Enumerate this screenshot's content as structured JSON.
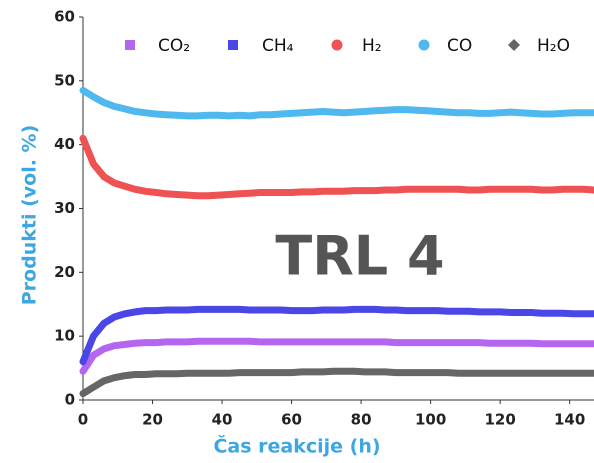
{
  "chart_data": {
    "type": "line",
    "xlabel": "Čas reakcije (h)",
    "ylabel": "Produkti (vol. %)",
    "annotation": "TRL 4",
    "xlim": [
      0,
      147
    ],
    "xticks": [
      0,
      20,
      40,
      60,
      80,
      100,
      120,
      140
    ],
    "ylim": [
      0,
      60
    ],
    "yticks": [
      0,
      10,
      20,
      30,
      40,
      50,
      60
    ],
    "x": [
      0,
      3,
      6,
      9,
      12,
      15,
      18,
      21,
      24,
      27,
      30,
      33,
      36,
      39,
      42,
      45,
      48,
      51,
      54,
      57,
      60,
      63,
      66,
      69,
      72,
      75,
      78,
      81,
      84,
      87,
      90,
      93,
      96,
      99,
      102,
      105,
      108,
      111,
      114,
      117,
      120,
      123,
      126,
      129,
      132,
      135,
      138,
      141,
      144,
      147
    ],
    "series": [
      {
        "name": "CO₂",
        "color": "#b566f0",
        "marker": "square",
        "values": [
          4.5,
          7,
          8,
          8.5,
          8.7,
          8.9,
          9,
          9,
          9.1,
          9.1,
          9.1,
          9.2,
          9.2,
          9.2,
          9.2,
          9.2,
          9.2,
          9.1,
          9.1,
          9.1,
          9.1,
          9.1,
          9.1,
          9.1,
          9.1,
          9.1,
          9.1,
          9.1,
          9.1,
          9.1,
          9,
          9,
          9,
          9,
          9,
          9,
          9,
          9,
          9,
          8.9,
          8.9,
          8.9,
          8.9,
          8.9,
          8.8,
          8.8,
          8.8,
          8.8,
          8.8,
          8.8
        ]
      },
      {
        "name": "CH₄",
        "color": "#4a47e6",
        "marker": "square",
        "values": [
          6,
          10,
          12,
          13,
          13.5,
          13.8,
          14,
          14,
          14.1,
          14.1,
          14.1,
          14.2,
          14.2,
          14.2,
          14.2,
          14.2,
          14.1,
          14.1,
          14.1,
          14.1,
          14,
          14,
          14,
          14.1,
          14.1,
          14.1,
          14.2,
          14.2,
          14.2,
          14.1,
          14.1,
          14,
          14,
          14,
          14,
          13.9,
          13.9,
          13.9,
          13.8,
          13.8,
          13.8,
          13.7,
          13.7,
          13.7,
          13.6,
          13.6,
          13.6,
          13.5,
          13.5,
          13.5
        ]
      },
      {
        "name": "H₂",
        "color": "#ee5253",
        "marker": "circle",
        "values": [
          41,
          37,
          35,
          34,
          33.5,
          33,
          32.7,
          32.5,
          32.3,
          32.2,
          32.1,
          32,
          32,
          32.1,
          32.2,
          32.3,
          32.4,
          32.5,
          32.5,
          32.5,
          32.5,
          32.6,
          32.6,
          32.7,
          32.7,
          32.7,
          32.8,
          32.8,
          32.8,
          32.9,
          32.9,
          33,
          33,
          33,
          33,
          33,
          33,
          32.9,
          32.9,
          33,
          33,
          33,
          33,
          33,
          32.9,
          32.9,
          33,
          33,
          33,
          32.9
        ]
      },
      {
        "name": "CO",
        "color": "#4fb8ef",
        "marker": "circle",
        "values": [
          48.5,
          47.5,
          46.6,
          46,
          45.6,
          45.2,
          45,
          44.8,
          44.7,
          44.6,
          44.5,
          44.5,
          44.6,
          44.6,
          44.5,
          44.6,
          44.5,
          44.7,
          44.7,
          44.8,
          44.9,
          45,
          45.1,
          45.2,
          45.1,
          45,
          45.1,
          45.2,
          45.3,
          45.4,
          45.5,
          45.5,
          45.4,
          45.3,
          45.2,
          45.1,
          45,
          45,
          44.9,
          44.9,
          45,
          45.1,
          45,
          44.9,
          44.8,
          44.8,
          44.9,
          45,
          45,
          45
        ]
      },
      {
        "name": "H₂O",
        "color": "#666666",
        "marker": "diamond",
        "values": [
          1,
          2,
          3,
          3.5,
          3.8,
          4,
          4,
          4.1,
          4.1,
          4.1,
          4.2,
          4.2,
          4.2,
          4.2,
          4.2,
          4.3,
          4.3,
          4.3,
          4.3,
          4.3,
          4.3,
          4.4,
          4.4,
          4.4,
          4.5,
          4.5,
          4.5,
          4.4,
          4.4,
          4.4,
          4.3,
          4.3,
          4.3,
          4.3,
          4.3,
          4.3,
          4.2,
          4.2,
          4.2,
          4.2,
          4.2,
          4.2,
          4.2,
          4.2,
          4.2,
          4.2,
          4.2,
          4.2,
          4.2,
          4.2
        ]
      }
    ]
  }
}
